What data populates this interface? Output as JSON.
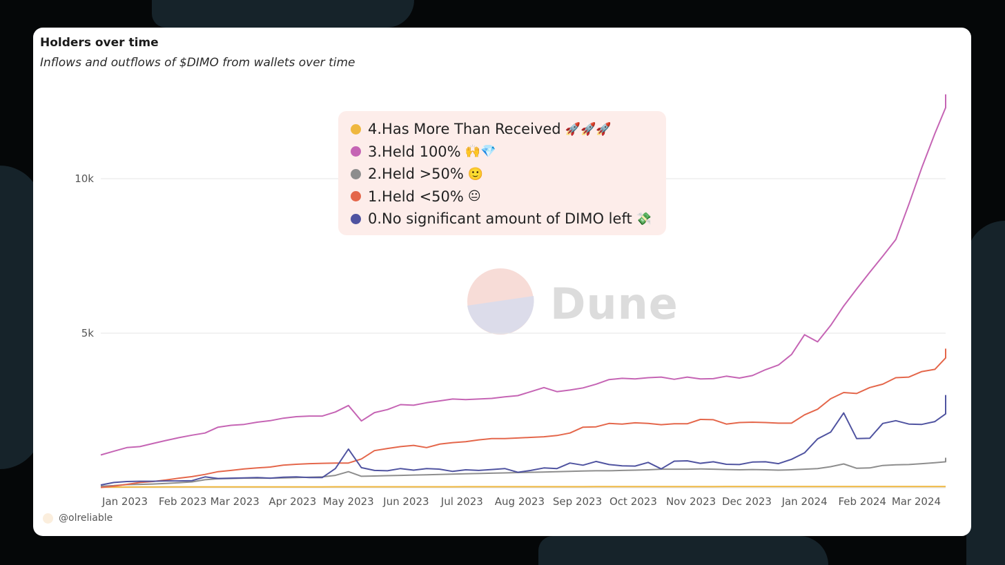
{
  "card": {
    "title": "Holders over time",
    "subtitle": "Inflows and outflows of $DIMO from wallets over time",
    "credit": "@olreliable",
    "watermark": "Dune"
  },
  "legend": [
    {
      "name": "4.Has More Than Received",
      "emoji": "🚀🚀🚀",
      "color": "#efb73e"
    },
    {
      "name": "3.Held 100%",
      "emoji": "🙌💎",
      "color": "#c564b4"
    },
    {
      "name": "2.Held >50%",
      "emoji": "🙂",
      "color": "#8d8d8d"
    },
    {
      "name": "1.Held <50%",
      "emoji": "😐",
      "color": "#e4664a"
    },
    {
      "name": "0.No significant amount of DIMO left",
      "emoji": "💸",
      "color": "#4f53a0"
    }
  ],
  "chart_data": {
    "type": "line",
    "title": "Holders over time",
    "subtitle": "Inflows and outflows of $DIMO from wallets over time",
    "xlabel": "",
    "ylabel": "",
    "x_start": "2022-12-19",
    "x_step_days": 7,
    "x_tick_labels": [
      "Jan 2023",
      "Feb 2023",
      "Mar 2023",
      "Apr 2023",
      "May 2023",
      "Jun 2023",
      "Jul 2023",
      "Aug 2023",
      "Sep 2023",
      "Oct 2023",
      "Nov 2023",
      "Dec 2023",
      "Jan 2024",
      "Feb 2024",
      "Mar 2024"
    ],
    "y_ticks": [
      5000,
      10000
    ],
    "y_tick_labels": [
      "5k",
      "10k"
    ],
    "ylim": [
      0,
      12500
    ],
    "grid": true,
    "series": [
      {
        "name": "4.Has More Than Received",
        "color": "#efb73e",
        "values": [
          20,
          20,
          22,
          24,
          25,
          26,
          26,
          27,
          28,
          28,
          29,
          29,
          29,
          30,
          30,
          30,
          30,
          30,
          31,
          31,
          31,
          31,
          31,
          32,
          32,
          32,
          32,
          32,
          33,
          33,
          33,
          33,
          33,
          34,
          34,
          34,
          34,
          34,
          35,
          35,
          35,
          35,
          35,
          36,
          36,
          36,
          36,
          36,
          37,
          37,
          37,
          37,
          37,
          38,
          38,
          38,
          38,
          38,
          38,
          39,
          39,
          39,
          39,
          39,
          40,
          40,
          40,
          40,
          40,
          40
        ]
      },
      {
        "name": "3.Held 100%",
        "color": "#c564b4",
        "values": [
          1060,
          1180,
          1300,
          1330,
          1430,
          1530,
          1620,
          1700,
          1770,
          1960,
          2020,
          2050,
          2120,
          2170,
          2250,
          2300,
          2320,
          2320,
          2450,
          2660,
          2160,
          2430,
          2530,
          2690,
          2670,
          2750,
          2810,
          2870,
          2850,
          2870,
          2890,
          2940,
          2980,
          3110,
          3240,
          3110,
          3160,
          3230,
          3350,
          3500,
          3540,
          3520,
          3560,
          3580,
          3510,
          3580,
          3520,
          3530,
          3610,
          3550,
          3630,
          3820,
          3970,
          4310,
          4950,
          4720,
          5250,
          5880,
          6430,
          6970,
          7490,
          8030,
          9170,
          10360,
          11460,
          12300,
          12730
        ]
      },
      {
        "name": "2.Held >50%",
        "color": "#8d8d8d",
        "values": [
          50,
          70,
          100,
          110,
          120,
          140,
          160,
          190,
          260,
          290,
          300,
          310,
          310,
          310,
          320,
          330,
          340,
          350,
          400,
          520,
          370,
          380,
          390,
          400,
          410,
          420,
          430,
          440,
          450,
          460,
          470,
          480,
          490,
          500,
          510,
          520,
          530,
          540,
          550,
          550,
          560,
          570,
          580,
          600,
          600,
          600,
          610,
          600,
          590,
          580,
          590,
          580,
          570,
          580,
          600,
          620,
          680,
          770,
          630,
          640,
          720,
          740,
          750,
          780,
          810,
          840,
          860,
          880,
          920,
          950,
          970
        ]
      },
      {
        "name": "1.Held <50%",
        "color": "#e4664a",
        "values": [
          10,
          50,
          110,
          170,
          200,
          250,
          310,
          360,
          430,
          520,
          560,
          610,
          640,
          670,
          730,
          760,
          780,
          790,
          800,
          800,
          930,
          1200,
          1270,
          1330,
          1370,
          1300,
          1410,
          1460,
          1490,
          1550,
          1590,
          1590,
          1610,
          1630,
          1650,
          1690,
          1770,
          1960,
          1970,
          2080,
          2060,
          2100,
          2080,
          2040,
          2070,
          2070,
          2210,
          2200,
          2060,
          2110,
          2120,
          2110,
          2090,
          2090,
          2360,
          2540,
          2880,
          3080,
          3050,
          3240,
          3350,
          3560,
          3580,
          3760,
          3830,
          4200,
          4380,
          4460,
          4500
        ]
      },
      {
        "name": "0.No significant amount of DIMO left",
        "color": "#4f53a0",
        "values": [
          90,
          170,
          200,
          210,
          210,
          220,
          220,
          230,
          350,
          300,
          310,
          320,
          330,
          310,
          340,
          350,
          330,
          330,
          620,
          1250,
          650,
          560,
          550,
          620,
          570,
          620,
          600,
          530,
          580,
          560,
          590,
          620,
          500,
          560,
          640,
          620,
          800,
          730,
          850,
          750,
          710,
          700,
          820,
          610,
          860,
          870,
          790,
          840,
          760,
          750,
          830,
          840,
          780,
          920,
          1130,
          1580,
          1800,
          2420,
          1590,
          1600,
          2080,
          2170,
          2060,
          2050,
          2140,
          2390,
          2590,
          2810,
          3000
        ]
      }
    ]
  }
}
